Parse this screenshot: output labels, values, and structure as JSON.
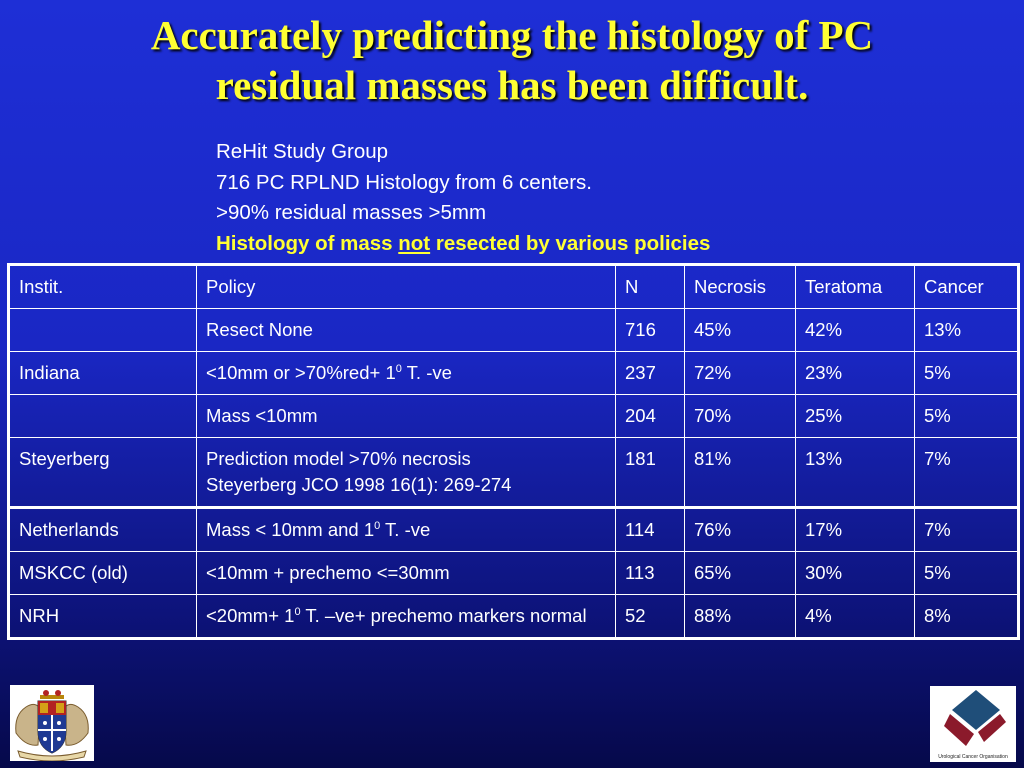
{
  "title": {
    "line1": "Accurately predicting the histology of PC",
    "line2": "residual masses has been difficult."
  },
  "notes": {
    "line1": "ReHit Study Group",
    "line2": "716 PC RPLND Histology from 6 centers.",
    "line3": ">90% residual masses >5mm",
    "emph_before": "Histology of mass ",
    "emph_underlined": "not",
    "emph_after": " resected by various policies"
  },
  "table": {
    "headers": [
      "Instit.",
      "Policy",
      "N",
      "Necrosis",
      "Teratoma",
      "Cancer"
    ],
    "rows": [
      {
        "instit": "",
        "policy": "Resect None",
        "n": "716",
        "necrosis": "45%",
        "teratoma": "42%",
        "cancer": "13%"
      },
      {
        "instit": "Indiana",
        "policy_a": "<10mm or >70%red+ 1",
        "policy_sup": "0",
        "policy_b": " T. -ve",
        "n": "237",
        "necrosis": "72%",
        "teratoma": "23%",
        "cancer": "5%"
      },
      {
        "instit": "",
        "policy": "Mass <10mm",
        "n": "204",
        "necrosis": "70%",
        "teratoma": "25%",
        "cancer": "5%"
      },
      {
        "instit": "Steyerberg",
        "policy_line1": "Prediction model >70% necrosis",
        "policy_line2": "Steyerberg JCO 1998 16(1): 269-274",
        "n": "181",
        "necrosis": "81%",
        "teratoma": "13%",
        "cancer": "7%"
      },
      {
        "instit": "Netherlands",
        "policy_a": "Mass < 10mm and 1",
        "policy_sup": "0",
        "policy_b": " T. -ve",
        "n": "114",
        "necrosis": "76%",
        "teratoma": "17%",
        "cancer": "7%"
      },
      {
        "instit": "MSKCC (old)",
        "policy": "<10mm + prechemo <=30mm",
        "n": "113",
        "necrosis": "65%",
        "teratoma": "30%",
        "cancer": "5%"
      },
      {
        "instit": "NRH",
        "policy_a": "<20mm+ 1",
        "policy_sup": "0",
        "policy_b": " T. –ve+ prechemo markers normal",
        "n": "52",
        "necrosis": "88%",
        "teratoma": "4%",
        "cancer": "8%"
      }
    ]
  },
  "logos": {
    "right_caption": "Urological Cancer Organisation"
  },
  "colors": {
    "title": "#ffff33",
    "background_top": "#1e2fd6",
    "background_bottom": "#06094a",
    "logo_blue": "#1f4e79",
    "logo_red": "#8b1a2b"
  }
}
